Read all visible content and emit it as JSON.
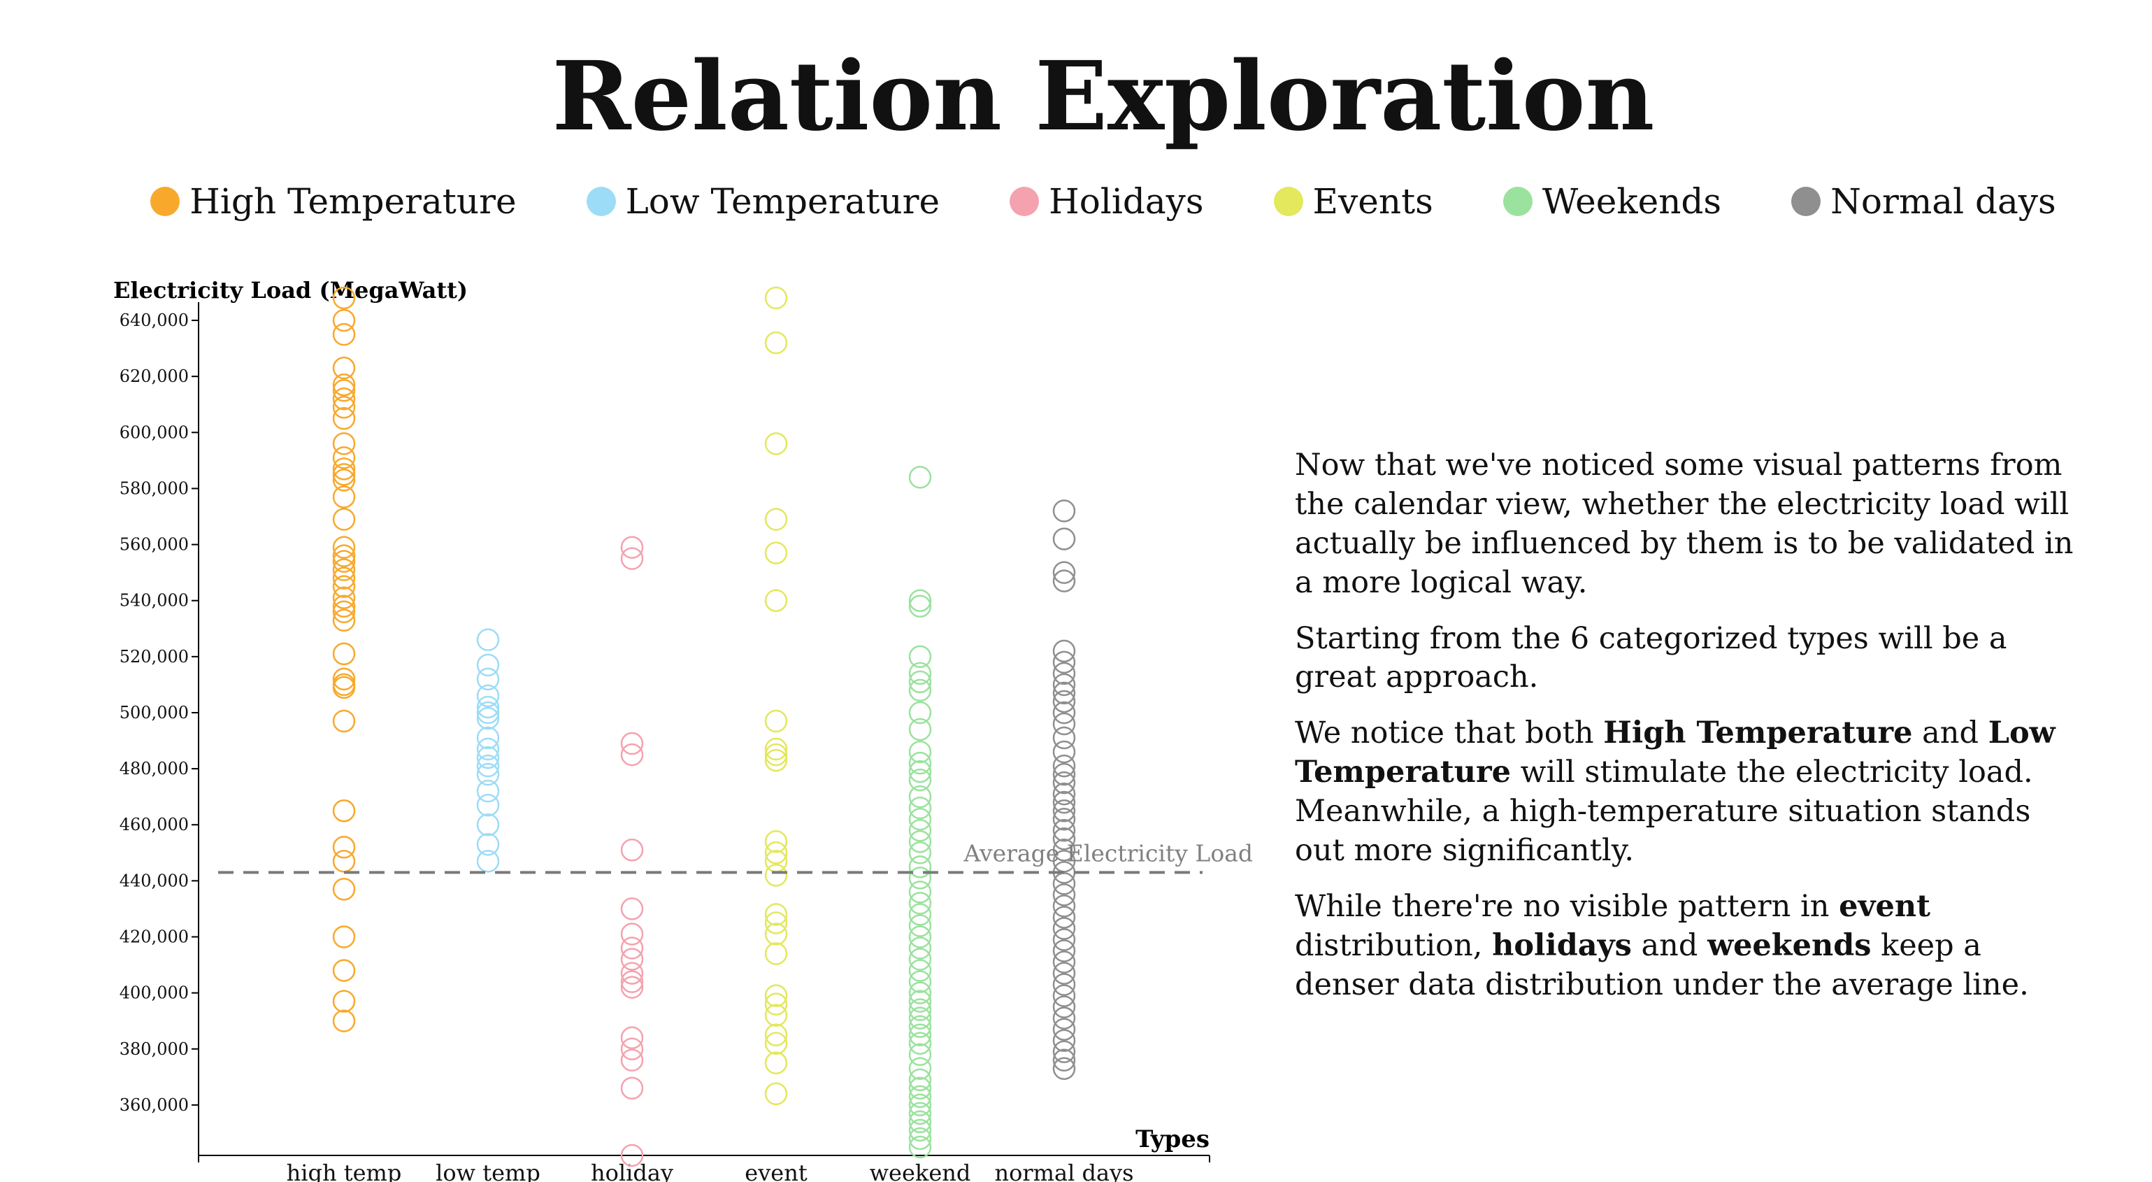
{
  "title": "Relation Exploration",
  "legend": [
    {
      "label": "High Temperature",
      "color": "#f8a92c"
    },
    {
      "label": "Low Temperature",
      "color": "#9ddcf6"
    },
    {
      "label": "Holidays",
      "color": "#f4a3ae"
    },
    {
      "label": "Events",
      "color": "#e3e85c"
    },
    {
      "label": "Weekends",
      "color": "#9be29e"
    },
    {
      "label": "Normal days",
      "color": "#8f8f8f"
    }
  ],
  "description": {
    "p1": "Now that we've noticed some visual patterns from the calendar view, whether the electricity load will actually be influenced by them is to be validated in a more logical way.",
    "p2": "Starting from the 6 categorized types will be a great approach.",
    "p3_a": "We notice that both ",
    "p3_b": "High Temperature",
    "p3_c": " and ",
    "p3_d": "Low Temperature",
    "p3_e": " will stimulate the electricity load. Meanwhile, a high-temperature situation stands out more significantly.",
    "p4_a": "While there're no visible pattern in ",
    "p4_b": "event",
    "p4_c": " distribution, ",
    "p4_d": "holidays",
    "p4_e": " and ",
    "p4_f": "weekends",
    "p4_g": " keep a denser data distribution under the average line."
  },
  "chart_data": {
    "type": "scatter",
    "ylabel": "Electricity Load (MegaWatt)",
    "xlabel": "Types",
    "categories": [
      "high temp",
      "low temp",
      "holiday",
      "event",
      "weekend",
      "normal days"
    ],
    "ylim": [
      342000,
      650000
    ],
    "yticks": [
      360000,
      380000,
      400000,
      420000,
      440000,
      460000,
      480000,
      500000,
      520000,
      540000,
      560000,
      580000,
      600000,
      620000,
      640000
    ],
    "ytick_labels": [
      "360,000",
      "380,000",
      "400,000",
      "420,000",
      "440,000",
      "460,000",
      "480,000",
      "500,000",
      "520,000",
      "540,000",
      "560,000",
      "580,000",
      "600,000",
      "620,000",
      "640,000"
    ],
    "average": {
      "value": 443000,
      "label": "Average Electricity Load"
    },
    "series": [
      {
        "category": "high temp",
        "color": "#f8a92c",
        "values": [
          648000,
          640000,
          635000,
          623000,
          617000,
          615000,
          612000,
          609000,
          605000,
          596000,
          591000,
          587000,
          585000,
          583000,
          577000,
          569000,
          559000,
          556000,
          554000,
          551000,
          548000,
          545000,
          541000,
          538000,
          536000,
          533000,
          521000,
          512000,
          510000,
          509000,
          497000,
          465000,
          452000,
          447000,
          437000,
          420000,
          408000,
          397000,
          390000
        ]
      },
      {
        "category": "low temp",
        "color": "#9ddcf6",
        "values": [
          526000,
          517000,
          512000,
          506000,
          502000,
          500000,
          498000,
          491000,
          487000,
          484000,
          481000,
          478000,
          472000,
          467000,
          460000,
          453000,
          447000
        ]
      },
      {
        "category": "holiday",
        "color": "#f4a3ae",
        "values": [
          559000,
          555000,
          489000,
          485000,
          451000,
          430000,
          421000,
          416000,
          412000,
          407000,
          404000,
          402000,
          384000,
          380000,
          376000,
          366000,
          342000
        ]
      },
      {
        "category": "event",
        "color": "#e3e85c",
        "values": [
          648000,
          632000,
          596000,
          569000,
          557000,
          540000,
          497000,
          487000,
          485000,
          483000,
          454000,
          450000,
          447000,
          442000,
          428000,
          425000,
          421000,
          414000,
          399000,
          396000,
          392000,
          385000,
          382000,
          375000,
          364000
        ]
      },
      {
        "category": "weekend",
        "color": "#9be29e",
        "values": [
          584000,
          540000,
          538000,
          520000,
          514000,
          511000,
          508000,
          500000,
          494000,
          486000,
          482000,
          479000,
          476000,
          470000,
          466000,
          462000,
          458000,
          454000,
          450000,
          445000,
          441000,
          436000,
          432000,
          428000,
          424000,
          420000,
          416000,
          412000,
          408000,
          404000,
          400000,
          397000,
          394000,
          391000,
          388000,
          385000,
          382000,
          378000,
          373000,
          369000,
          366000,
          363000,
          360000,
          357000,
          354000,
          351000,
          348000,
          345000
        ]
      },
      {
        "category": "normal days",
        "color": "#8f8f8f",
        "values": [
          572000,
          562000,
          550000,
          547000,
          522000,
          518000,
          514000,
          510000,
          507000,
          504000,
          500000,
          496000,
          491000,
          486000,
          481000,
          478000,
          475000,
          471000,
          468000,
          465000,
          462000,
          458000,
          455000,
          451000,
          447000,
          443000,
          439000,
          435000,
          431000,
          427000,
          423000,
          419000,
          415000,
          411000,
          407000,
          403000,
          399000,
          395000,
          391000,
          387000,
          383000,
          379000,
          376000,
          373000
        ]
      }
    ]
  }
}
